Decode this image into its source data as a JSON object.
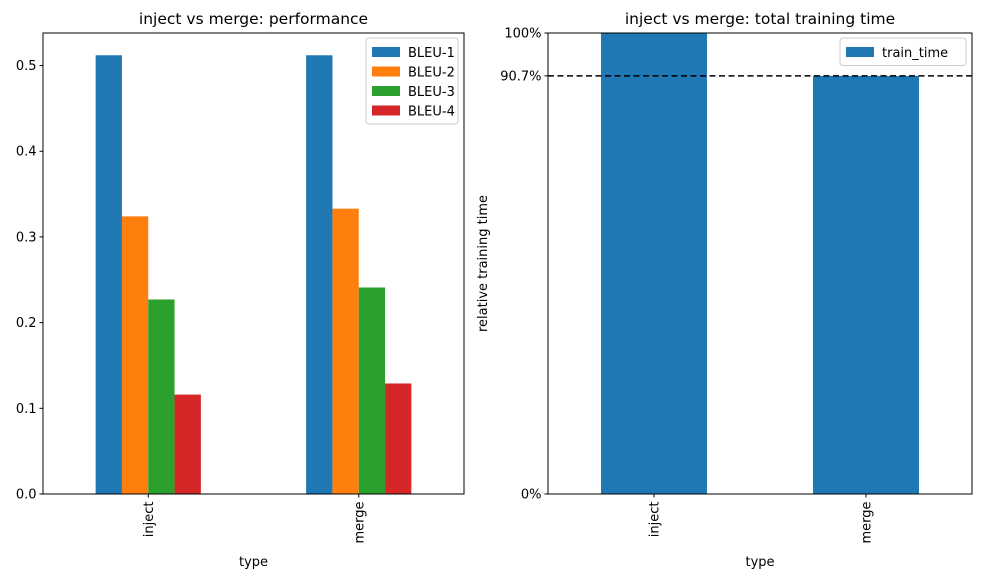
{
  "chart_data": [
    {
      "type": "bar",
      "title": "inject vs merge: performance",
      "xlabel": "type",
      "ylabel": "",
      "categories": [
        "inject",
        "merge"
      ],
      "series": [
        {
          "name": "BLEU-1",
          "values": [
            0.512,
            0.512
          ],
          "color": "#1f77b4"
        },
        {
          "name": "BLEU-2",
          "values": [
            0.324,
            0.333
          ],
          "color": "#ff7f0e"
        },
        {
          "name": "BLEU-3",
          "values": [
            0.227,
            0.241
          ],
          "color": "#2ca02c"
        },
        {
          "name": "BLEU-4",
          "values": [
            0.116,
            0.129
          ],
          "color": "#d62728"
        }
      ],
      "ylim": [
        0,
        0.538
      ],
      "yticks": [
        0.0,
        0.1,
        0.2,
        0.3,
        0.4,
        0.5
      ],
      "ytick_labels": [
        "0.0",
        "0.1",
        "0.2",
        "0.3",
        "0.4",
        "0.5"
      ],
      "legend_position": "top-right",
      "grid": false
    },
    {
      "type": "bar",
      "title": "inject vs merge: total training time",
      "xlabel": "type",
      "ylabel": "relative training time",
      "categories": [
        "inject",
        "merge"
      ],
      "series": [
        {
          "name": "train_time",
          "values": [
            100,
            90.7
          ],
          "color": "#1f77b4"
        }
      ],
      "ylim": [
        0,
        100
      ],
      "yticks": [
        0,
        90.7,
        100
      ],
      "ytick_labels": [
        "0%",
        "90.7%",
        "100%"
      ],
      "reference_line": {
        "value": 90.7,
        "style": "dashed",
        "color": "#000000"
      },
      "legend_position": "top-right",
      "grid": false
    }
  ]
}
